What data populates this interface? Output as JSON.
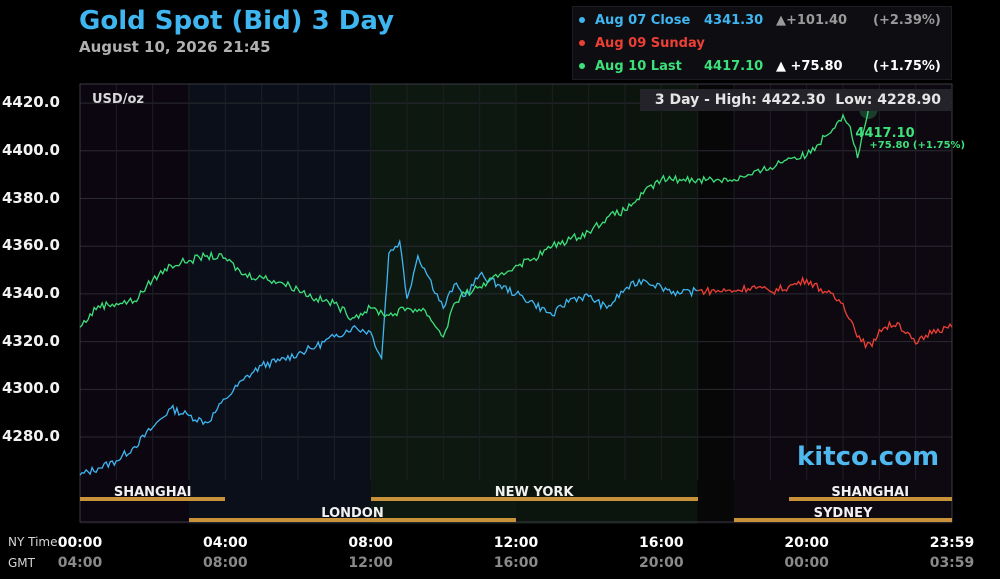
{
  "title": "Gold Spot (Bid) 3 Day",
  "timestamp": "August 10, 2026 21:45",
  "legend": [
    {
      "date": "Aug 07",
      "label": "Close",
      "price": "4341.30",
      "change": "▲+101.40",
      "pct": "(+2.39%)",
      "color": "#3fb6f0"
    },
    {
      "date": "Aug 09",
      "label": "Sunday",
      "price": "",
      "change": "",
      "pct": "",
      "color": "#ee3f35"
    },
    {
      "date": "Aug 10",
      "label": "Last",
      "price": "4417.10",
      "change": "▲  +75.80",
      "pct": "(+1.75%)",
      "color": "#3de07a"
    }
  ],
  "units": "USD/oz",
  "hilo": {
    "label": "3 Day - High:",
    "high": "4422.30",
    "low_label": "Low:",
    "low": "4228.90"
  },
  "brand": "kitco.com",
  "last_label": {
    "price": "4417.10",
    "change": "+75.80 (+1.75%)"
  },
  "time_axis": {
    "ny_label": "NY Time",
    "gmt_label": "GMT",
    "ny_ticks": [
      "00:00",
      "04:00",
      "08:00",
      "12:00",
      "16:00",
      "20:00",
      "23:59"
    ],
    "gmt_ticks": [
      "04:00",
      "08:00",
      "12:00",
      "16:00",
      "20:00",
      "00:00",
      "03:59"
    ]
  },
  "markets": [
    {
      "name": "SHANGHAI",
      "start": 0.0,
      "end": 4.0,
      "row": 0
    },
    {
      "name": "NEW YORK",
      "start": 8.0,
      "end": 17.0,
      "row": 0
    },
    {
      "name": "SHANGHAI",
      "start": 19.5,
      "end": 24.0,
      "row": 0
    },
    {
      "name": "LONDON",
      "start": 3.0,
      "end": 12.0,
      "row": 1
    },
    {
      "name": "SYDNEY",
      "start": 18.0,
      "end": 24.0,
      "row": 1
    }
  ],
  "colors": {
    "aug07": "#3fb6f0",
    "aug09": "#ee3f35",
    "aug10": "#3de07a",
    "market_bar": "#c8923a"
  },
  "chart_data": {
    "type": "line",
    "xlabel": "",
    "ylabel": "USD/oz",
    "x_unit": "hours (NY time)",
    "xlim": [
      0,
      24
    ],
    "ylim": [
      4262,
      4428
    ],
    "y_ticks": [
      "4280.0",
      "4300.0",
      "4320.0",
      "4340.0",
      "4360.0",
      "4380.0",
      "4400.0",
      "4420.0"
    ],
    "grid": true,
    "series": [
      {
        "name": "Aug 07",
        "color": "#3fb6f0",
        "x": [
          0,
          0.5,
          1,
          1.5,
          2,
          2.5,
          3,
          3.5,
          4,
          4.5,
          5,
          5.5,
          6,
          6.5,
          7,
          7.5,
          8,
          8.3,
          8.5,
          8.8,
          9,
          9.3,
          9.6,
          10,
          10.3,
          10.6,
          11,
          11.5,
          12,
          12.5,
          13,
          13.5,
          14,
          14.5,
          15,
          15.5,
          16,
          16.5,
          17
        ],
        "y": [
          4264,
          4267,
          4270,
          4276,
          4284,
          4292,
          4289,
          4286,
          4296,
          4304,
          4310,
          4312,
          4315,
          4318,
          4322,
          4326,
          4324,
          4313,
          4357,
          4362,
          4338,
          4356,
          4347,
          4334,
          4344,
          4339,
          4348,
          4344,
          4340,
          4336,
          4331,
          4338,
          4339,
          4334,
          4342,
          4346,
          4343,
          4340,
          4341.3
        ]
      },
      {
        "name": "Aug 09",
        "color": "#ee3f35",
        "x": [
          17,
          18,
          18.5,
          19,
          19.5,
          20,
          20.5,
          21,
          21.5,
          21.8,
          22,
          22.5,
          23,
          23.5,
          24
        ],
        "y": [
          4341.3,
          4341.3,
          4343,
          4341,
          4343,
          4346,
          4341,
          4336,
          4320,
          4318,
          4325,
          4328,
          4319,
          4325,
          4326
        ]
      },
      {
        "name": "Aug 10",
        "color": "#3de07a",
        "x": [
          0,
          0.5,
          1,
          1.5,
          2,
          2.5,
          3,
          3.5,
          4,
          4.5,
          5,
          5.5,
          6,
          6.5,
          7,
          7.5,
          8,
          8.5,
          9,
          9.5,
          10,
          10.3,
          10.6,
          11,
          11.5,
          12,
          12.5,
          13,
          13.5,
          14,
          14.5,
          15,
          15.5,
          16,
          16.5,
          17,
          18,
          18.5,
          19,
          19.5,
          20,
          20.5,
          21,
          21.2,
          21.4,
          21.7
        ],
        "y": [
          4326,
          4335,
          4336,
          4337,
          4346,
          4352,
          4354,
          4356,
          4355,
          4348,
          4347,
          4345,
          4342,
          4338,
          4336,
          4330,
          4334,
          4331,
          4334,
          4333,
          4322,
          4336,
          4340,
          4343,
          4347,
          4352,
          4355,
          4360,
          4363,
          4366,
          4372,
          4375,
          4382,
          4388,
          4388,
          4388,
          4388,
          4390,
          4393,
          4397,
          4398,
          4406,
          4415,
          4410,
          4397,
          4417.1
        ]
      }
    ]
  }
}
